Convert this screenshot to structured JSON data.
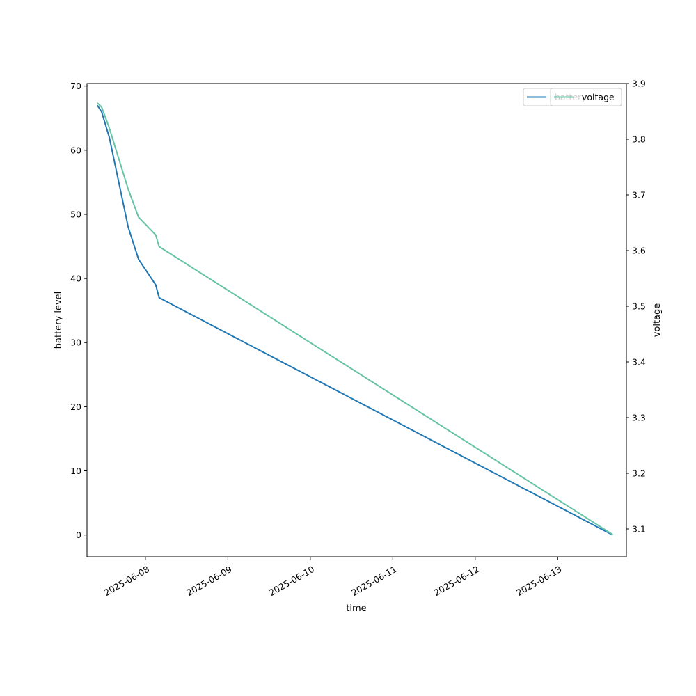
{
  "chart_data": {
    "type": "line",
    "xlabel": "time",
    "ylabel_left": "battery level",
    "ylabel_right": "voltage",
    "ylim_left": [
      -3.4,
      70.4
    ],
    "ylim_right": [
      3.05,
      3.9
    ],
    "yticks_left": [
      0,
      10,
      20,
      30,
      40,
      50,
      60,
      70
    ],
    "yticks_right": [
      3.1,
      3.2,
      3.3,
      3.4,
      3.5,
      3.6,
      3.7,
      3.8,
      3.9
    ],
    "xlim": [
      "2025-06-07T07:00",
      "2025-06-13T20:00"
    ],
    "xticks": [
      "2025-06-08",
      "2025-06-09",
      "2025-06-10",
      "2025-06-11",
      "2025-06-12",
      "2025-06-13"
    ],
    "grid": false,
    "legend_placement": "top-right",
    "series": [
      {
        "name": "battery",
        "axis": "left",
        "color": "#1f77b4",
        "points": [
          [
            "2025-06-07T10:00",
            67
          ],
          [
            "2025-06-07T11:15",
            66
          ],
          [
            "2025-06-07T13:30",
            62
          ],
          [
            "2025-06-07T19:00",
            48
          ],
          [
            "2025-06-07T22:00",
            43
          ],
          [
            "2025-06-08T03:00",
            39
          ],
          [
            "2025-06-08T04:00",
            37
          ],
          [
            "2025-06-13T16:00",
            0
          ]
        ]
      },
      {
        "name": "voltage",
        "axis": "right",
        "color": "#66c2a5",
        "points": [
          [
            "2025-06-07T10:00",
            3.865
          ],
          [
            "2025-06-07T11:15",
            3.858
          ],
          [
            "2025-06-07T13:30",
            3.82
          ],
          [
            "2025-06-07T19:00",
            3.71
          ],
          [
            "2025-06-07T22:00",
            3.66
          ],
          [
            "2025-06-08T03:00",
            3.628
          ],
          [
            "2025-06-08T04:00",
            3.607
          ],
          [
            "2025-06-13T16:00",
            3.09
          ]
        ]
      }
    ]
  }
}
